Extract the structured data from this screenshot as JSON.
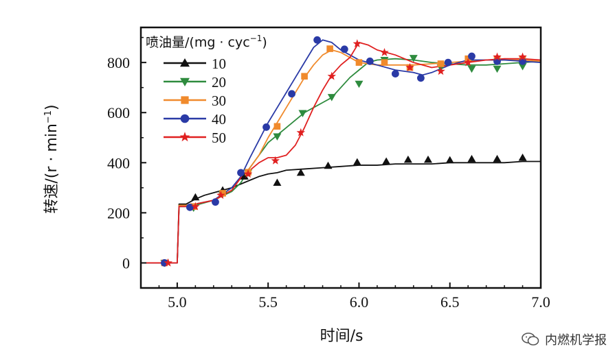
{
  "chart_data": {
    "type": "line",
    "xlabel": "时间/s",
    "ylabel": "转速/(r · min",
    "ylabel_sup": "−1",
    "ylabel_close": ")",
    "xlim": [
      4.8,
      7.0
    ],
    "ylim": [
      -100,
      940
    ],
    "xticks": [
      5.0,
      5.5,
      6.0,
      6.5,
      7.0
    ],
    "xtick_labels": [
      "5.0",
      "5.5",
      "6.0",
      "6.5",
      "7.0"
    ],
    "yticks": [
      0,
      200,
      400,
      600,
      800
    ],
    "ytick_labels": [
      "0",
      "200",
      "400",
      "600",
      "800"
    ],
    "grid": false,
    "legend": {
      "placement": "top-left",
      "title": "喷油量/(mg · cyc",
      "title_sup": "−1",
      "title_close": ")"
    },
    "series": [
      {
        "name": "10",
        "color": "#111111",
        "marker": "triangle-up",
        "points": [
          [
            4.8,
            0
          ],
          [
            4.99,
            0
          ],
          [
            5.0,
            0
          ],
          [
            5.01,
            235
          ],
          [
            5.05,
            235
          ],
          [
            5.1,
            255
          ],
          [
            5.15,
            270
          ],
          [
            5.2,
            280
          ],
          [
            5.25,
            290
          ],
          [
            5.3,
            300
          ],
          [
            5.35,
            315
          ],
          [
            5.4,
            330
          ],
          [
            5.45,
            345
          ],
          [
            5.5,
            355
          ],
          [
            5.55,
            360
          ],
          [
            5.6,
            370
          ],
          [
            5.7,
            375
          ],
          [
            5.8,
            380
          ],
          [
            5.9,
            385
          ],
          [
            6.0,
            390
          ],
          [
            6.1,
            390
          ],
          [
            6.2,
            395
          ],
          [
            6.3,
            395
          ],
          [
            6.4,
            395
          ],
          [
            6.5,
            400
          ],
          [
            6.6,
            400
          ],
          [
            6.7,
            400
          ],
          [
            6.8,
            400
          ],
          [
            6.9,
            405
          ],
          [
            7.0,
            405
          ]
        ],
        "markers": [
          [
            5.1,
            262
          ],
          [
            5.25,
            290
          ],
          [
            5.37,
            345
          ],
          [
            5.55,
            320
          ],
          [
            5.68,
            360
          ],
          [
            5.83,
            388
          ],
          [
            5.99,
            402
          ],
          [
            6.15,
            405
          ],
          [
            6.27,
            412
          ],
          [
            6.38,
            412
          ],
          [
            6.5,
            410
          ],
          [
            6.62,
            415
          ],
          [
            6.76,
            415
          ],
          [
            6.9,
            420
          ]
        ]
      },
      {
        "name": "20",
        "color": "#2e8b3e",
        "marker": "triangle-down",
        "points": [
          [
            4.8,
            0
          ],
          [
            4.99,
            0
          ],
          [
            5.0,
            0
          ],
          [
            5.01,
            225
          ],
          [
            5.05,
            225
          ],
          [
            5.1,
            230
          ],
          [
            5.2,
            250
          ],
          [
            5.3,
            285
          ],
          [
            5.35,
            320
          ],
          [
            5.4,
            380
          ],
          [
            5.45,
            430
          ],
          [
            5.5,
            480
          ],
          [
            5.55,
            510
          ],
          [
            5.6,
            540
          ],
          [
            5.65,
            570
          ],
          [
            5.7,
            600
          ],
          [
            5.75,
            620
          ],
          [
            5.8,
            640
          ],
          [
            5.85,
            660
          ],
          [
            5.9,
            700
          ],
          [
            5.95,
            740
          ],
          [
            6.0,
            770
          ],
          [
            6.05,
            800
          ],
          [
            6.1,
            810
          ],
          [
            6.2,
            815
          ],
          [
            6.3,
            810
          ],
          [
            6.4,
            800
          ],
          [
            6.5,
            795
          ],
          [
            6.6,
            790
          ],
          [
            6.7,
            790
          ],
          [
            6.8,
            795
          ],
          [
            6.9,
            800
          ],
          [
            7.0,
            805
          ]
        ],
        "markers": [
          [
            4.93,
            0
          ],
          [
            5.09,
            220
          ],
          [
            5.25,
            275
          ],
          [
            5.39,
            360
          ],
          [
            5.55,
            505
          ],
          [
            5.69,
            598
          ],
          [
            5.85,
            662
          ],
          [
            6.0,
            715
          ],
          [
            6.14,
            810
          ],
          [
            6.3,
            818
          ],
          [
            6.45,
            780
          ],
          [
            6.62,
            775
          ],
          [
            6.76,
            775
          ],
          [
            6.9,
            785
          ]
        ]
      },
      {
        "name": "30",
        "color": "#f08a2c",
        "marker": "square",
        "points": [
          [
            4.8,
            0
          ],
          [
            4.99,
            0
          ],
          [
            5.0,
            0
          ],
          [
            5.01,
            230
          ],
          [
            5.05,
            230
          ],
          [
            5.1,
            235
          ],
          [
            5.2,
            250
          ],
          [
            5.3,
            290
          ],
          [
            5.35,
            340
          ],
          [
            5.4,
            380
          ],
          [
            5.45,
            430
          ],
          [
            5.5,
            500
          ],
          [
            5.55,
            560
          ],
          [
            5.6,
            620
          ],
          [
            5.65,
            680
          ],
          [
            5.7,
            740
          ],
          [
            5.75,
            790
          ],
          [
            5.8,
            830
          ],
          [
            5.85,
            850
          ],
          [
            5.9,
            840
          ],
          [
            5.95,
            820
          ],
          [
            6.0,
            800
          ],
          [
            6.1,
            790
          ],
          [
            6.2,
            790
          ],
          [
            6.3,
            790
          ],
          [
            6.4,
            795
          ],
          [
            6.5,
            800
          ],
          [
            6.6,
            805
          ],
          [
            6.7,
            810
          ],
          [
            6.8,
            810
          ],
          [
            6.9,
            810
          ],
          [
            7.0,
            805
          ]
        ],
        "markers": [
          [
            4.93,
            0
          ],
          [
            5.09,
            225
          ],
          [
            5.25,
            278
          ],
          [
            5.39,
            362
          ],
          [
            5.55,
            545
          ],
          [
            5.7,
            745
          ],
          [
            5.84,
            855
          ],
          [
            6.0,
            800
          ],
          [
            6.14,
            800
          ],
          [
            6.28,
            780
          ],
          [
            6.45,
            795
          ],
          [
            6.6,
            815
          ],
          [
            6.76,
            815
          ],
          [
            6.9,
            815
          ]
        ]
      },
      {
        "name": "40",
        "color": "#2a3aa6",
        "marker": "circle",
        "points": [
          [
            4.8,
            0
          ],
          [
            4.99,
            0
          ],
          [
            5.0,
            0
          ],
          [
            5.01,
            225
          ],
          [
            5.05,
            225
          ],
          [
            5.1,
            235
          ],
          [
            5.2,
            250
          ],
          [
            5.3,
            300
          ],
          [
            5.35,
            345
          ],
          [
            5.4,
            420
          ],
          [
            5.45,
            490
          ],
          [
            5.5,
            560
          ],
          [
            5.55,
            620
          ],
          [
            5.6,
            680
          ],
          [
            5.65,
            740
          ],
          [
            5.7,
            800
          ],
          [
            5.75,
            860
          ],
          [
            5.8,
            890
          ],
          [
            5.85,
            880
          ],
          [
            5.9,
            850
          ],
          [
            5.95,
            830
          ],
          [
            6.0,
            810
          ],
          [
            6.1,
            790
          ],
          [
            6.2,
            770
          ],
          [
            6.3,
            760
          ],
          [
            6.35,
            750
          ],
          [
            6.4,
            760
          ],
          [
            6.5,
            790
          ],
          [
            6.6,
            810
          ],
          [
            6.7,
            810
          ],
          [
            6.8,
            810
          ],
          [
            6.9,
            805
          ],
          [
            7.0,
            800
          ]
        ],
        "markers": [
          [
            4.93,
            0
          ],
          [
            5.07,
            222
          ],
          [
            5.21,
            243
          ],
          [
            5.35,
            360
          ],
          [
            5.49,
            542
          ],
          [
            5.63,
            675
          ],
          [
            5.77,
            890
          ],
          [
            5.92,
            853
          ],
          [
            6.06,
            805
          ],
          [
            6.2,
            755
          ],
          [
            6.34,
            738
          ],
          [
            6.49,
            800
          ],
          [
            6.62,
            825
          ],
          [
            6.76,
            805
          ],
          [
            6.9,
            805
          ]
        ]
      },
      {
        "name": "50",
        "color": "#e02020",
        "marker": "star",
        "points": [
          [
            4.8,
            0
          ],
          [
            4.99,
            0
          ],
          [
            5.0,
            0
          ],
          [
            5.01,
            225
          ],
          [
            5.05,
            225
          ],
          [
            5.1,
            235
          ],
          [
            5.2,
            250
          ],
          [
            5.3,
            290
          ],
          [
            5.35,
            340
          ],
          [
            5.4,
            370
          ],
          [
            5.45,
            400
          ],
          [
            5.5,
            420
          ],
          [
            5.55,
            420
          ],
          [
            5.6,
            430
          ],
          [
            5.65,
            470
          ],
          [
            5.7,
            540
          ],
          [
            5.75,
            620
          ],
          [
            5.8,
            690
          ],
          [
            5.85,
            750
          ],
          [
            5.9,
            790
          ],
          [
            5.95,
            820
          ],
          [
            6.0,
            880
          ],
          [
            6.05,
            870
          ],
          [
            6.1,
            850
          ],
          [
            6.15,
            840
          ],
          [
            6.2,
            830
          ],
          [
            6.3,
            800
          ],
          [
            6.4,
            780
          ],
          [
            6.5,
            790
          ],
          [
            6.6,
            800
          ],
          [
            6.7,
            810
          ],
          [
            6.8,
            815
          ],
          [
            6.9,
            815
          ],
          [
            7.0,
            810
          ]
        ],
        "markers": [
          [
            4.95,
            0
          ],
          [
            5.1,
            225
          ],
          [
            5.24,
            270
          ],
          [
            5.39,
            355
          ],
          [
            5.54,
            408
          ],
          [
            5.68,
            520
          ],
          [
            5.85,
            745
          ],
          [
            5.99,
            875
          ],
          [
            6.14,
            840
          ],
          [
            6.28,
            780
          ],
          [
            6.45,
            765
          ],
          [
            6.6,
            800
          ],
          [
            6.76,
            822
          ],
          [
            6.9,
            822
          ]
        ]
      }
    ]
  },
  "watermark": {
    "icon": "wechat-icon",
    "text": "内燃机学报"
  }
}
